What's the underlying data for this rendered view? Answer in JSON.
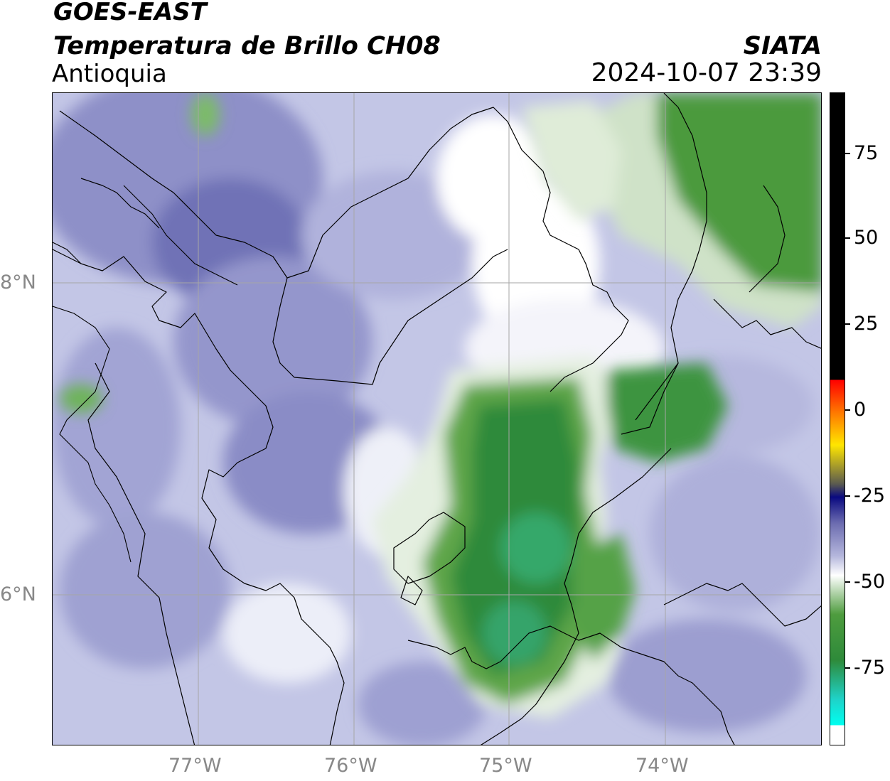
{
  "header": {
    "satellite": "GOES-EAST",
    "product": "Temperatura de Brillo CH08",
    "region": "Antioquia",
    "organization": "SIATA",
    "timestamp": "2024-10-07 23:39"
  },
  "axes": {
    "longitude_ticks": [
      "77°W",
      "76°W",
      "75°W",
      "74°W"
    ],
    "latitude_ticks": [
      "8°N",
      "6°N"
    ]
  },
  "colorbar": {
    "tick_labels": [
      "75",
      "50",
      "25",
      "0",
      "-25",
      "-50",
      "-75"
    ],
    "colors": {
      "cold": "#2e8a3a",
      "cloud_mid": "#6c6cb0",
      "clear": "#ffffff",
      "warm": "#ff0000",
      "hot": "#000000",
      "coldest": "#00fff0"
    }
  }
}
